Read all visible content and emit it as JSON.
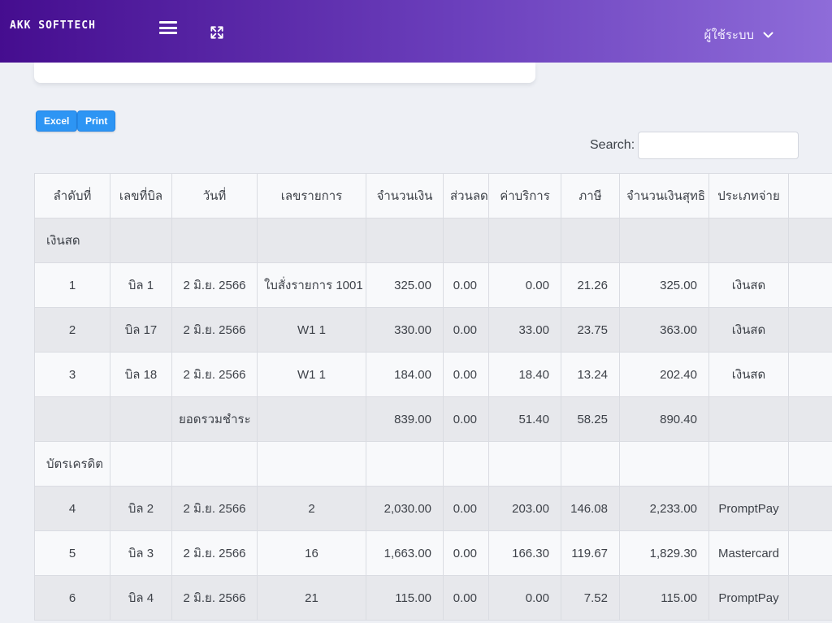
{
  "topbar": {
    "brand": "AKK SOFTTECH",
    "user_menu": {
      "label": "ผู้ใช้ระบบ"
    }
  },
  "toolbar": {
    "excel_label": "Excel",
    "print_label": "Print"
  },
  "search": {
    "label": "Search:",
    "value": "",
    "placeholder": ""
  },
  "table": {
    "columns": [
      "ลำดับที่",
      "เลขที่บิล",
      "วันที่",
      "เลขรายการ",
      "จำนวนเงิน",
      "ส่วนลด",
      "ค่าบริการ",
      "ภาษี",
      "จำนวนเงินสุทธิ",
      "ประเภทจ่าย",
      ""
    ],
    "rows": [
      {
        "type": "group",
        "cells": [
          "เงินสด",
          "",
          "",
          "",
          "",
          "",
          "",
          "",
          "",
          "",
          ""
        ]
      },
      {
        "type": "data",
        "cells": [
          "1",
          "บิล 1",
          "2 มิ.ย. 2566",
          "ใบสั่งรายการ 1001",
          "325.00",
          "0.00",
          "0.00",
          "21.26",
          "325.00",
          "เงินสด",
          ""
        ]
      },
      {
        "type": "data",
        "cells": [
          "2",
          "บิล 17",
          "2 มิ.ย. 2566",
          "W1 1",
          "330.00",
          "0.00",
          "33.00",
          "23.75",
          "363.00",
          "เงินสด",
          ""
        ]
      },
      {
        "type": "data",
        "cells": [
          "3",
          "บิล 18",
          "2 มิ.ย. 2566",
          "W1 1",
          "184.00",
          "0.00",
          "18.40",
          "13.24",
          "202.40",
          "เงินสด",
          ""
        ]
      },
      {
        "type": "total",
        "cells": [
          "",
          "",
          "ยอดรวมชำระ",
          "",
          "839.00",
          "0.00",
          "51.40",
          "58.25",
          "890.40",
          "",
          ""
        ]
      },
      {
        "type": "group",
        "cells": [
          "บัตรเครดิต",
          "",
          "",
          "",
          "",
          "",
          "",
          "",
          "",
          "",
          ""
        ]
      },
      {
        "type": "data",
        "cells": [
          "4",
          "บิล 2",
          "2 มิ.ย. 2566",
          "2",
          "2,030.00",
          "0.00",
          "203.00",
          "146.08",
          "2,233.00",
          "PromptPay",
          ""
        ]
      },
      {
        "type": "data",
        "cells": [
          "5",
          "บิล 3",
          "2 มิ.ย. 2566",
          "16",
          "1,663.00",
          "0.00",
          "166.30",
          "119.67",
          "1,829.30",
          "Mastercard",
          ""
        ]
      },
      {
        "type": "data",
        "cells": [
          "6",
          "บิล 4",
          "2 มิ.ย. 2566",
          "21",
          "115.00",
          "0.00",
          "0.00",
          "7.52",
          "115.00",
          "PromptPay",
          ""
        ]
      }
    ]
  },
  "colors": {
    "topbar_gradient_start": "#450d8f",
    "topbar_gradient_end": "#8e6cd9",
    "button_blue": "#2d95f4",
    "page_background": "#eef0f5",
    "row_stripe": "#e7e8ec",
    "row_plain": "#f8f9fb"
  }
}
